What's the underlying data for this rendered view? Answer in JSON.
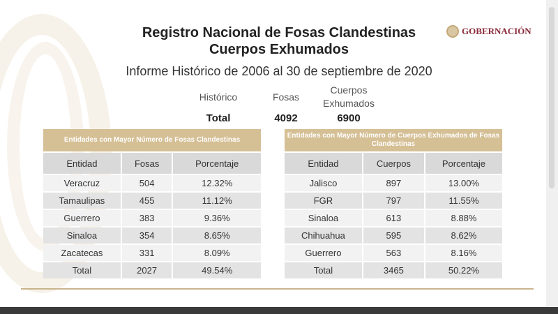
{
  "title_line1": "Registro Nacional de Fosas Clandestinas",
  "title_line2": "Cuerpos Exhumados",
  "logo_text": "GOBERNACIÓN",
  "subtitle": "Informe Histórico de 2006 al 30 de septiembre de 2020",
  "summary": {
    "col_label": "Histórico",
    "fosas_label": "Fosas",
    "cuerpos_label1": "Cuerpos",
    "cuerpos_label2": "Exhumados",
    "row_label": "Total",
    "fosas": "4092",
    "cuerpos": "6900"
  },
  "left_table": {
    "caption": "Entidades con Mayor Número de Fosas Clandestinas",
    "headers": [
      "Entidad",
      "Fosas",
      "Porcentaje"
    ],
    "rows": [
      [
        "Veracruz",
        "504",
        "12.32%"
      ],
      [
        "Tamaulipas",
        "455",
        "11.12%"
      ],
      [
        "Guerrero",
        "383",
        "9.36%"
      ],
      [
        "Sinaloa",
        "354",
        "8.65%"
      ],
      [
        "Zacatecas",
        "331",
        "8.09%"
      ],
      [
        "Total",
        "2027",
        "49.54%"
      ]
    ]
  },
  "right_table": {
    "caption": "Entidades con Mayor Número de Cuerpos Exhumados de Fosas Clandestinas",
    "headers": [
      "Entidad",
      "Cuerpos",
      "Porcentaje"
    ],
    "rows": [
      [
        "Jalisco",
        "897",
        "13.00%"
      ],
      [
        "FGR",
        "797",
        "11.55%"
      ],
      [
        "Sinaloa",
        "613",
        "8.88%"
      ],
      [
        "Chihuahua",
        "595",
        "8.62%"
      ],
      [
        "Guerrero",
        "563",
        "8.16%"
      ],
      [
        "Total",
        "3465",
        "50.22%"
      ]
    ]
  }
}
